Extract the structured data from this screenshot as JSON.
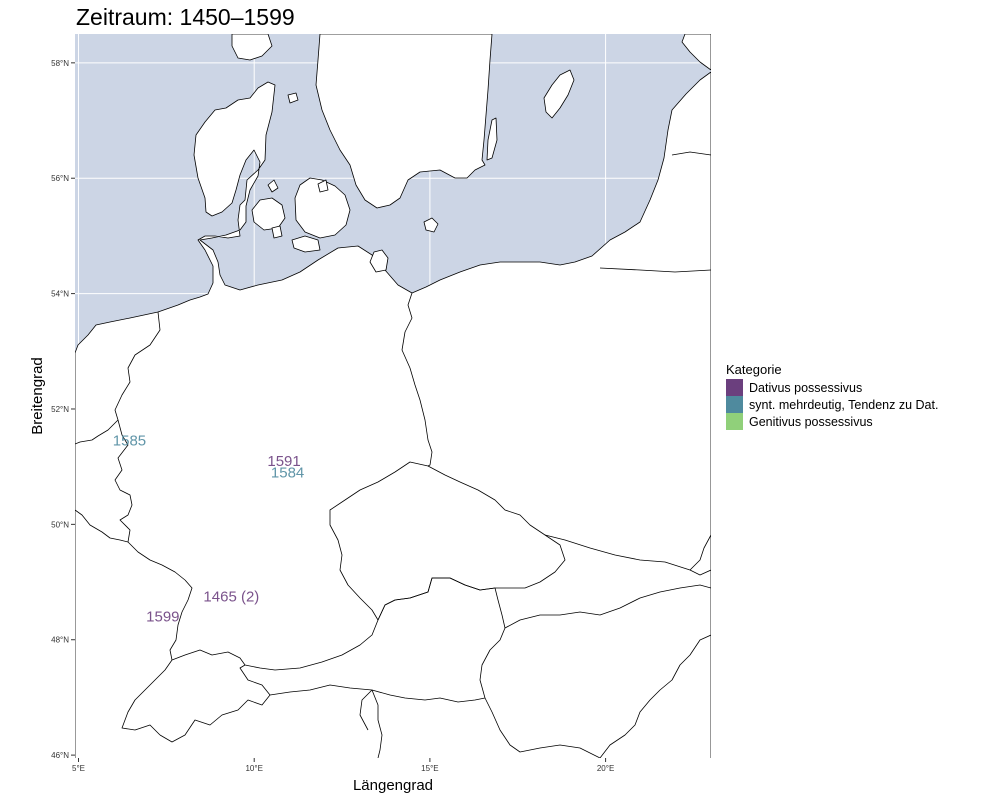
{
  "title": "Zeitraum: 1450–1599",
  "chart_data": {
    "type": "map",
    "title": "Zeitraum: 1450–1599",
    "xlabel": "Längengrad",
    "ylabel": "Breitengrad",
    "xlim": [
      4.9,
      23.0
    ],
    "ylim": [
      45.95,
      58.5
    ],
    "x_ticks": [
      {
        "value": 5,
        "label": "5°E"
      },
      {
        "value": 10,
        "label": "10°E"
      },
      {
        "value": 15,
        "label": "15°E"
      },
      {
        "value": 20,
        "label": "20°E"
      }
    ],
    "y_ticks": [
      {
        "value": 46,
        "label": "46°N"
      },
      {
        "value": 48,
        "label": "48°N"
      },
      {
        "value": 50,
        "label": "50°N"
      },
      {
        "value": 52,
        "label": "52°N"
      },
      {
        "value": 54,
        "label": "54°N"
      },
      {
        "value": 56,
        "label": "56°N"
      },
      {
        "value": 58,
        "label": "58°N"
      }
    ],
    "legend": {
      "title": "Kategorie",
      "position": "right",
      "items": [
        {
          "label": "Dativus possessivus",
          "color": "#6b3f7e"
        },
        {
          "label": "synt. mehrdeutig, Tendenz zu Dat.",
          "color": "#4f8a9e"
        },
        {
          "label": "Genitivus possessivus",
          "color": "#90d07a"
        }
      ]
    },
    "points": [
      {
        "label": "1585",
        "lon": 6.45,
        "lat": 51.45,
        "category": 1
      },
      {
        "label": "1591",
        "lon": 10.85,
        "lat": 51.1,
        "category": 0
      },
      {
        "label": "1584",
        "lon": 10.95,
        "lat": 50.9,
        "category": 1
      },
      {
        "label": "1465 (2)",
        "lon": 9.35,
        "lat": 48.75,
        "category": 0
      },
      {
        "label": "1599",
        "lon": 7.4,
        "lat": 48.4,
        "category": 0
      }
    ],
    "colors": {
      "sea": "#ccd5e5",
      "land": "#ffffff",
      "border": "#000000",
      "grid": "#ffffff"
    }
  }
}
